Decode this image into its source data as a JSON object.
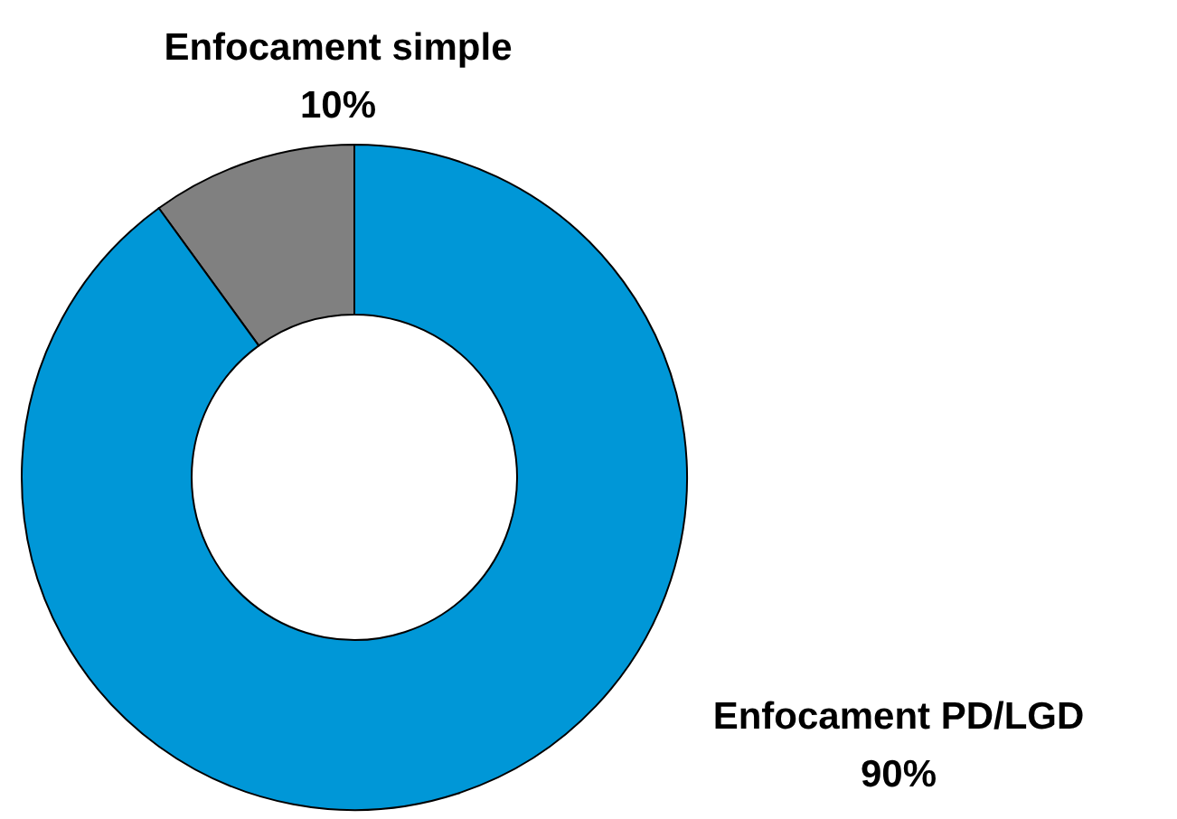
{
  "chart_data": {
    "type": "donut",
    "categories": [
      "Enfocament simple",
      "Enfocament PD/LGD"
    ],
    "values": [
      10,
      90
    ],
    "colors": [
      "#808080",
      "#0097d7"
    ],
    "value_labels": [
      "10%",
      "90%"
    ]
  }
}
